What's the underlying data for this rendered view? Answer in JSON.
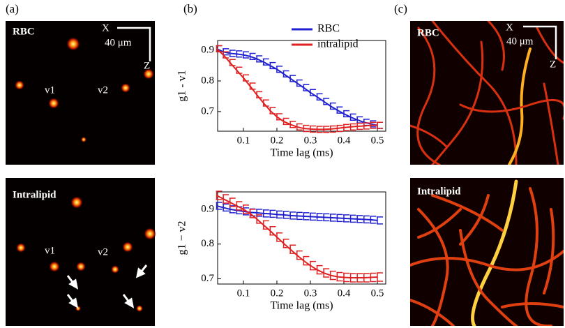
{
  "figure_labels": [
    "(a)",
    "(b)",
    "(c)"
  ],
  "panel_a": {
    "top_label": "RBC",
    "bottom_label": "Intralipid",
    "vessel_labels": [
      "v1",
      "v2"
    ],
    "scale_bar": {
      "x": "X",
      "length": "40 μm",
      "z": "Z"
    }
  },
  "panel_c": {
    "top_label": "RBC",
    "bottom_label": "Intralipid",
    "scale_bar": {
      "x": "X",
      "length": "40 μm",
      "z": "Z"
    }
  },
  "chart_data": [
    {
      "type": "line",
      "y_label": "g1 - v1",
      "x_label": "Time lag (ms)",
      "legend": "upper right",
      "x": [
        0.02,
        0.04,
        0.06,
        0.08,
        0.1,
        0.12,
        0.14,
        0.16,
        0.18,
        0.2,
        0.22,
        0.24,
        0.26,
        0.28,
        0.3,
        0.32,
        0.34,
        0.36,
        0.38,
        0.4,
        0.42,
        0.44,
        0.46,
        0.48,
        0.5
      ],
      "xlim": [
        0.023,
        0.525
      ],
      "xticks": [
        0.1,
        0.2,
        0.3,
        0.4,
        0.5
      ],
      "ylim": [
        0.636,
        0.932
      ],
      "yticks": [
        0.7,
        0.8,
        0.9
      ],
      "series": [
        {
          "name": "RBC",
          "color": "#2020d0",
          "values": [
            0.905,
            0.895,
            0.89,
            0.888,
            0.885,
            0.88,
            0.872,
            0.862,
            0.85,
            0.838,
            0.823,
            0.808,
            0.793,
            0.778,
            0.762,
            0.748,
            0.733,
            0.718,
            0.705,
            0.693,
            0.682,
            0.673,
            0.665,
            0.66,
            0.655
          ],
          "errors": [
            0.01,
            0.01,
            0.01,
            0.01,
            0.01,
            0.01,
            0.01,
            0.01,
            0.01,
            0.01,
            0.01,
            0.01,
            0.01,
            0.01,
            0.01,
            0.01,
            0.01,
            0.01,
            0.01,
            0.01,
            0.01,
            0.01,
            0.01,
            0.01,
            0.01
          ]
        },
        {
          "name": "intralipid",
          "color": "#e02020",
          "values": [
            0.905,
            0.885,
            0.86,
            0.835,
            0.81,
            0.783,
            0.755,
            0.728,
            0.703,
            0.683,
            0.668,
            0.658,
            0.65,
            0.645,
            0.643,
            0.642,
            0.642,
            0.643,
            0.645,
            0.648,
            0.65,
            0.652,
            0.653,
            0.655,
            0.655
          ],
          "errors": [
            0.01,
            0.01,
            0.01,
            0.01,
            0.01,
            0.01,
            0.01,
            0.01,
            0.01,
            0.01,
            0.01,
            0.01,
            0.01,
            0.01,
            0.01,
            0.01,
            0.01,
            0.01,
            0.01,
            0.01,
            0.01,
            0.01,
            0.01,
            0.01,
            0.01
          ]
        }
      ]
    },
    {
      "type": "line",
      "y_label": "g1 − v2",
      "x_label": "Time lag (ms)",
      "x": [
        0.02,
        0.04,
        0.06,
        0.08,
        0.1,
        0.12,
        0.14,
        0.16,
        0.18,
        0.2,
        0.22,
        0.24,
        0.26,
        0.28,
        0.3,
        0.32,
        0.34,
        0.36,
        0.38,
        0.4,
        0.42,
        0.44,
        0.46,
        0.48,
        0.5
      ],
      "xlim": [
        0.023,
        0.525
      ],
      "xticks": [
        0.1,
        0.2,
        0.3,
        0.4,
        0.5
      ],
      "ylim": [
        0.685,
        0.95
      ],
      "yticks": [
        0.7,
        0.8,
        0.9
      ],
      "series": [
        {
          "color": "#2020d0",
          "values": [
            0.91,
            0.905,
            0.9,
            0.897,
            0.894,
            0.891,
            0.89,
            0.888,
            0.887,
            0.885,
            0.884,
            0.882,
            0.881,
            0.88,
            0.879,
            0.878,
            0.877,
            0.876,
            0.875,
            0.874,
            0.873,
            0.872,
            0.871,
            0.87,
            0.868
          ],
          "errors": [
            0.01,
            0.01,
            0.01,
            0.01,
            0.01,
            0.01,
            0.01,
            0.01,
            0.01,
            0.01,
            0.01,
            0.01,
            0.01,
            0.01,
            0.01,
            0.01,
            0.01,
            0.01,
            0.01,
            0.01,
            0.01,
            0.01,
            0.01,
            0.01,
            0.01
          ]
        },
        {
          "color": "#e02020",
          "values": [
            0.94,
            0.93,
            0.92,
            0.91,
            0.9,
            0.888,
            0.872,
            0.855,
            0.838,
            0.82,
            0.802,
            0.785,
            0.768,
            0.752,
            0.738,
            0.726,
            0.717,
            0.71,
            0.706,
            0.704,
            0.703,
            0.703,
            0.703,
            0.704,
            0.705
          ],
          "errors": [
            0.012,
            0.012,
            0.012,
            0.012,
            0.012,
            0.012,
            0.012,
            0.012,
            0.012,
            0.012,
            0.012,
            0.012,
            0.012,
            0.012,
            0.012,
            0.012,
            0.012,
            0.012,
            0.012,
            0.012,
            0.012,
            0.012,
            0.012,
            0.012,
            0.012
          ]
        }
      ]
    }
  ]
}
